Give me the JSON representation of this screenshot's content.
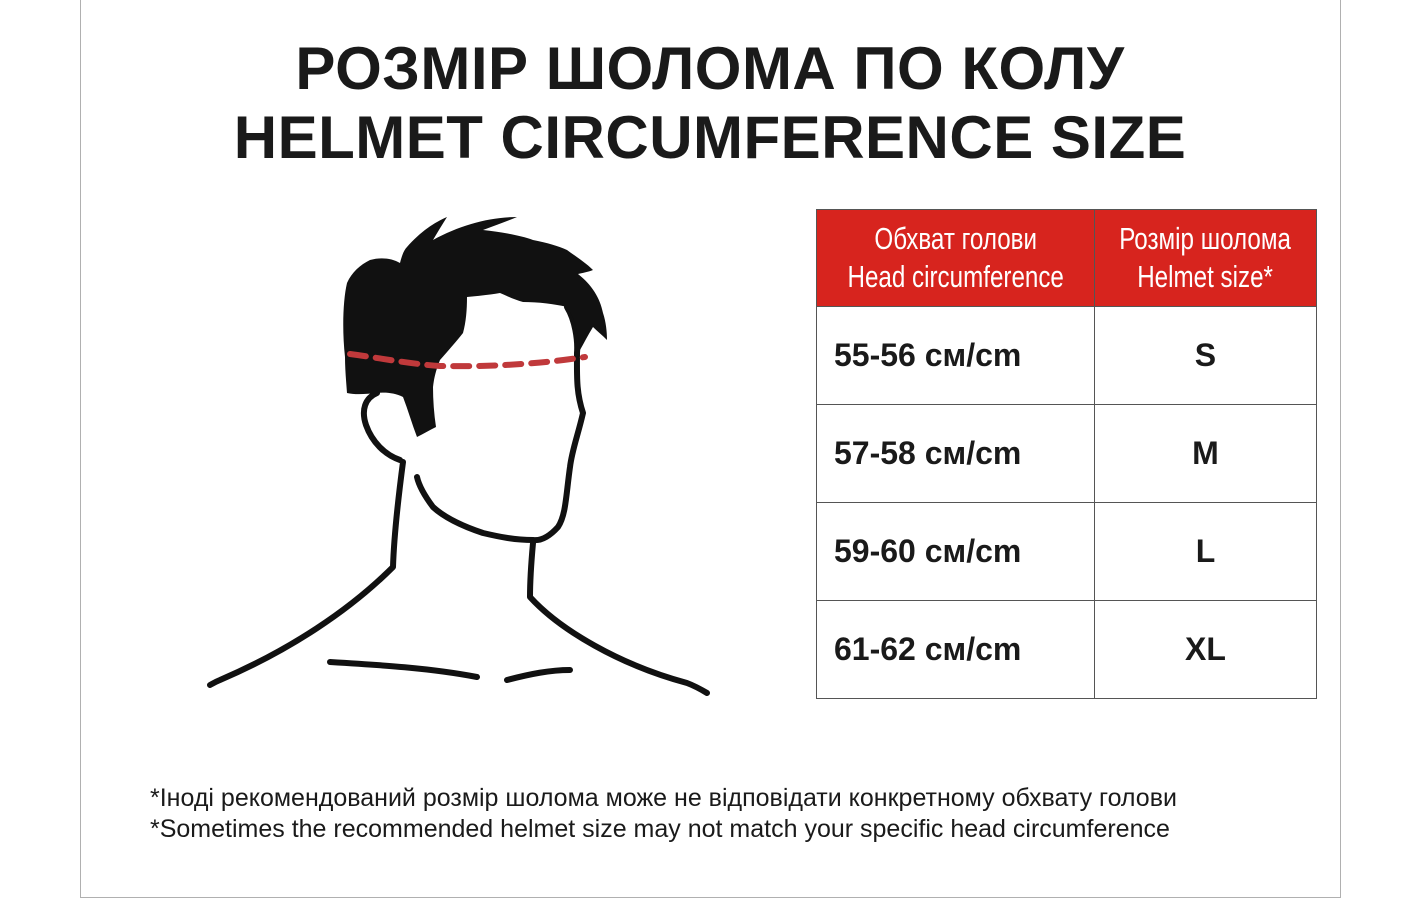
{
  "title": {
    "ua": "РОЗМІР ШОЛОМА ПО КОЛУ",
    "en": "HELMET CIRCUMFERENCE SIZE"
  },
  "table": {
    "header": [
      {
        "ua": "Обхват голови",
        "en": "Head circumference"
      },
      {
        "ua": "Розмір шолома",
        "en": "Helmet size*"
      }
    ],
    "rows": [
      {
        "circumference": "55-56 см/cm",
        "size": "S"
      },
      {
        "circumference": "57-58 см/cm",
        "size": "M"
      },
      {
        "circumference": "59-60 см/cm",
        "size": "L"
      },
      {
        "circumference": "61-62 см/cm",
        "size": "XL"
      }
    ]
  },
  "notes": {
    "ua": "*Іноді рекомендований розмір шолома може не відповідати конкретному обхвату голови",
    "en": "*Sometimes the recommended helmet size may not match your specific head circumference"
  },
  "colors": {
    "header_bg": "#d7241e",
    "measure_line": "#c0393b",
    "ink": "#1a1a1a"
  },
  "illustration": "head-outline-with-circumference-line"
}
